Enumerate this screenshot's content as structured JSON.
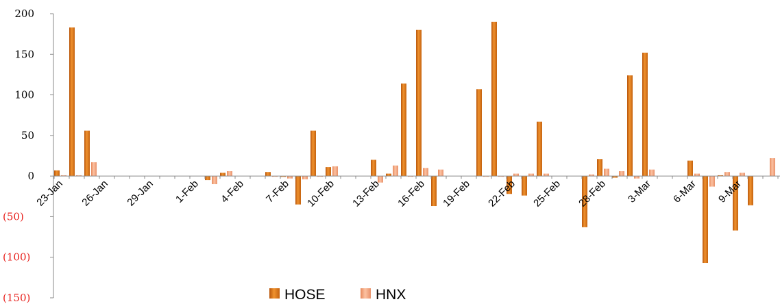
{
  "chart_data": {
    "type": "bar",
    "x": [
      "23-Jan",
      "24-Jan",
      "25-Jan",
      "26-Jan",
      "27-Jan",
      "28-Jan",
      "29-Jan",
      "30-Jan",
      "31-Jan",
      "1-Feb",
      "2-Feb",
      "3-Feb",
      "4-Feb",
      "5-Feb",
      "6-Feb",
      "7-Feb",
      "8-Feb",
      "9-Feb",
      "10-Feb",
      "11-Feb",
      "12-Feb",
      "13-Feb",
      "14-Feb",
      "15-Feb",
      "16-Feb",
      "17-Feb",
      "18-Feb",
      "19-Feb",
      "20-Feb",
      "21-Feb",
      "22-Feb",
      "23-Feb",
      "24-Feb",
      "25-Feb",
      "26-Feb",
      "27-Feb",
      "28-Feb",
      "1-Mar",
      "2-Mar",
      "3-Mar",
      "4-Mar",
      "5-Mar",
      "6-Mar",
      "7-Mar",
      "8-Mar",
      "9-Mar",
      "10-Mar",
      "11-Mar"
    ],
    "tick_labels": [
      "23-Jan",
      "26-Jan",
      "29-Jan",
      "1-Feb",
      "4-Feb",
      "7-Feb",
      "10-Feb",
      "13-Feb",
      "16-Feb",
      "19-Feb",
      "22-Feb",
      "25-Feb",
      "28-Feb",
      "3-Mar",
      "6-Mar",
      "9-Mar"
    ],
    "series": [
      {
        "name": "HOSE",
        "color": "#e07a1e",
        "values": [
          7,
          183,
          56,
          null,
          null,
          null,
          null,
          null,
          null,
          null,
          -5,
          4,
          null,
          null,
          5,
          -1,
          -35,
          56,
          11,
          null,
          null,
          20,
          3,
          114,
          180,
          -37,
          null,
          null,
          107,
          190,
          -22,
          -24,
          67,
          null,
          null,
          -63,
          21,
          -2,
          124,
          152,
          null,
          null,
          19,
          -107,
          1,
          -67,
          -36,
          null
        ]
      },
      {
        "name": "HNX",
        "color": "#f4a47a",
        "values": [
          1,
          1,
          17,
          null,
          null,
          null,
          null,
          null,
          null,
          null,
          -10,
          6,
          null,
          null,
          0,
          -3,
          -4,
          0,
          12,
          null,
          null,
          -8,
          13,
          0,
          10,
          8,
          null,
          null,
          0,
          0,
          3,
          3,
          3,
          null,
          null,
          2,
          9,
          6,
          -3,
          8,
          null,
          null,
          3,
          -13,
          5,
          4,
          null,
          22
        ]
      }
    ],
    "ylim": [
      -150,
      200
    ],
    "yticks": [
      200,
      150,
      100,
      50,
      0,
      -50,
      -100,
      -150
    ],
    "ytick_labels": [
      "200",
      "150",
      "100",
      "50",
      "0",
      "(50)",
      "(100)",
      "(150)"
    ],
    "negative_label_color": "#e8201c",
    "legend": {
      "position": "bottom-center"
    },
    "grid": false
  }
}
